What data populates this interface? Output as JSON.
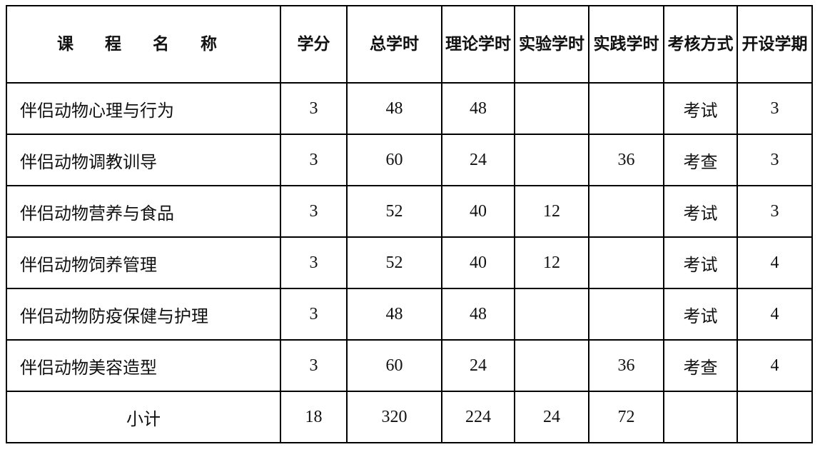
{
  "table": {
    "headers": [
      "课 程 名 称",
      "学分",
      "总学时",
      "理论学时",
      "实验学时",
      "实践学时",
      "考核方式",
      "开设学期"
    ],
    "rows": [
      [
        "伴侣动物心理与行为",
        "3",
        "48",
        "48",
        "",
        "",
        "考试",
        "3"
      ],
      [
        "伴侣动物调教训导",
        "3",
        "60",
        "24",
        "",
        "36",
        "考查",
        "3"
      ],
      [
        "伴侣动物营养与食品",
        "3",
        "52",
        "40",
        "12",
        "",
        "考试",
        "3"
      ],
      [
        "伴侣动物饲养管理",
        "3",
        "52",
        "40",
        "12",
        "",
        "考试",
        "4"
      ],
      [
        "伴侣动物防疫保健与护理",
        "3",
        "48",
        "48",
        "",
        "",
        "考试",
        "4"
      ],
      [
        "伴侣动物美容造型",
        "3",
        "60",
        "24",
        "",
        "36",
        "考查",
        "4"
      ]
    ],
    "subtotal": [
      "小计",
      "18",
      "320",
      "224",
      "24",
      "72",
      "",
      ""
    ]
  }
}
